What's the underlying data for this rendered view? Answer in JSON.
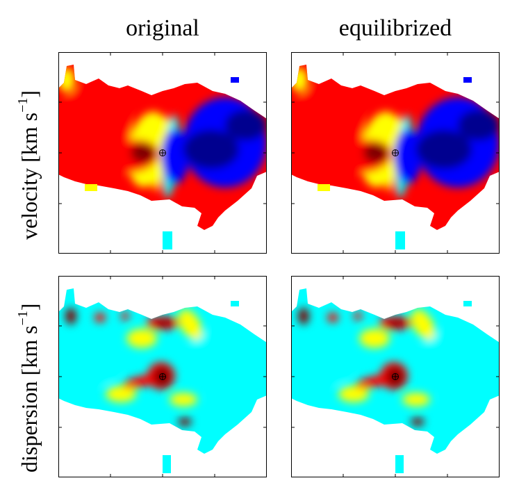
{
  "figure": {
    "column_titles": [
      "original",
      "equilibrized"
    ],
    "row_labels": [
      {
        "text": "velocity [km s",
        "sup": "−1",
        "close": "]"
      },
      {
        "text": "dispersion [km s",
        "sup": "−1",
        "close": "]"
      }
    ]
  },
  "chart_data": [
    {
      "type": "heatmap",
      "title": "original",
      "quantity": "velocity",
      "ylabel": "velocity [km s−1]",
      "colormap": "jet",
      "center_marker": "circled-plus",
      "features": [
        {
          "name": "redshifted lobe",
          "level": 0.93
        },
        {
          "name": "blueshifted lobe",
          "level": 0.07
        },
        {
          "name": "kinematic center",
          "level": 0.5
        }
      ]
    },
    {
      "type": "heatmap",
      "title": "equilibrized",
      "quantity": "velocity",
      "ylabel": "velocity [km s−1]",
      "colormap": "jet",
      "center_marker": "circled-plus",
      "features": [
        {
          "name": "redshifted lobe",
          "level": 0.93
        },
        {
          "name": "blueshifted lobe",
          "level": 0.07
        },
        {
          "name": "kinematic center",
          "level": 0.5
        }
      ]
    },
    {
      "type": "heatmap",
      "title": "original",
      "quantity": "dispersion",
      "ylabel": "dispersion [km s−1]",
      "colormap": "jet",
      "center_marker": "circled-plus",
      "features": [
        {
          "name": "central peak",
          "level": 1.0
        },
        {
          "name": "background",
          "level": 0.4
        }
      ]
    },
    {
      "type": "heatmap",
      "title": "equilibrized",
      "quantity": "dispersion",
      "ylabel": "dispersion [km s−1]",
      "colormap": "jet",
      "center_marker": "circled-plus",
      "features": [
        {
          "name": "central peak",
          "level": 1.0
        },
        {
          "name": "background",
          "level": 0.4
        }
      ]
    }
  ],
  "colors": {
    "jet_stops": [
      "#00008f",
      "#0000ff",
      "#00ffff",
      "#ffff00",
      "#ff0000",
      "#800000"
    ],
    "frame": "#000000"
  }
}
